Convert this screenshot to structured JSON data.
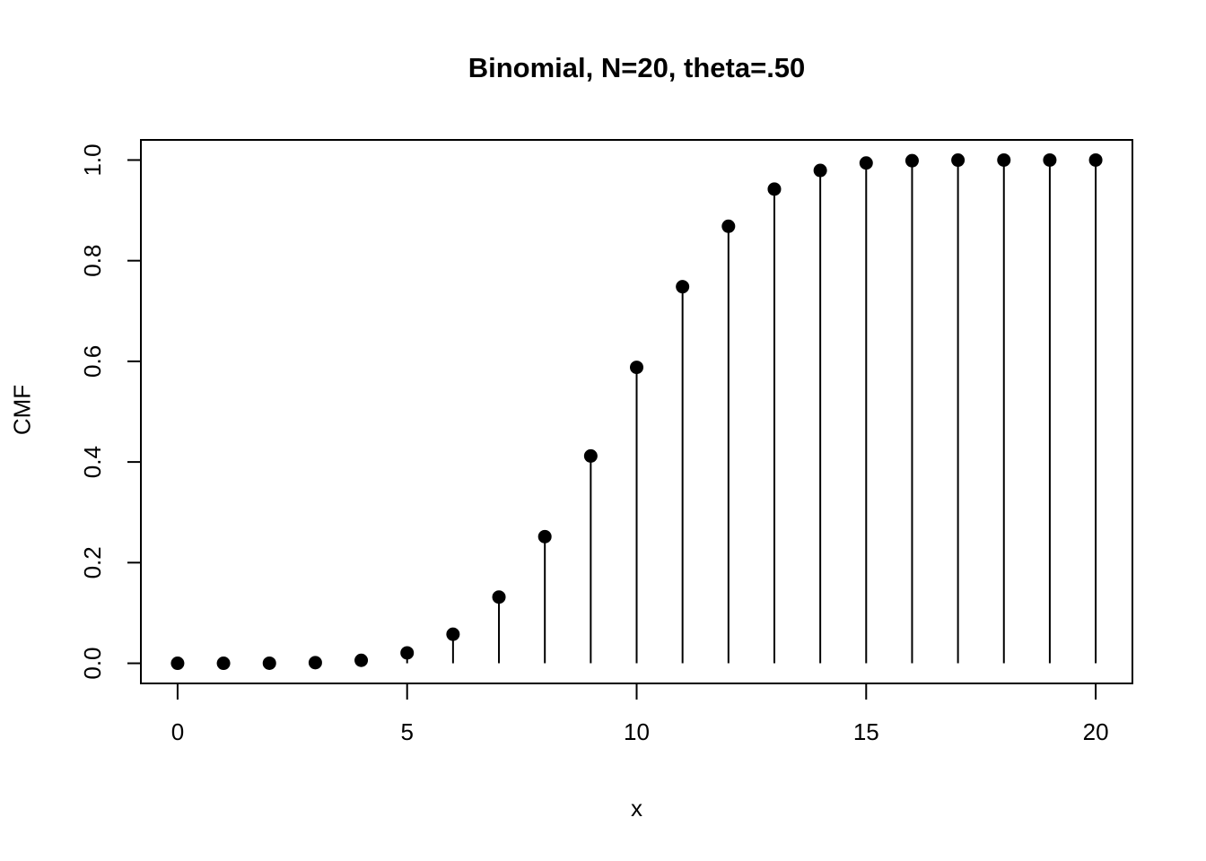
{
  "chart_data": {
    "type": "scatter",
    "style": "stem",
    "title": "Binomial, N=20, theta=.50",
    "xlabel": "x",
    "ylabel": "CMF",
    "x": [
      0,
      1,
      2,
      3,
      4,
      5,
      6,
      7,
      8,
      9,
      10,
      11,
      12,
      13,
      14,
      15,
      16,
      17,
      18,
      19,
      20
    ],
    "y": [
      0.0,
      0.0,
      0.0002,
      0.0013,
      0.0059,
      0.0207,
      0.0577,
      0.1316,
      0.2517,
      0.4119,
      0.5881,
      0.7483,
      0.8684,
      0.9423,
      0.9793,
      0.9941,
      0.9987,
      0.9998,
      1.0,
      1.0,
      1.0
    ],
    "xlim": [
      -0.8,
      20.8
    ],
    "ylim": [
      -0.04,
      1.04
    ],
    "xticks": {
      "values": [
        0,
        5,
        10,
        15,
        20
      ],
      "labels": [
        "0",
        "5",
        "10",
        "15",
        "20"
      ]
    },
    "yticks": {
      "values": [
        0.0,
        0.2,
        0.4,
        0.6,
        0.8,
        1.0
      ],
      "labels": [
        "0.0",
        "0.2",
        "0.4",
        "0.6",
        "0.8",
        "1.0"
      ]
    },
    "grid": false,
    "legend": null,
    "colors": {
      "background": "#ffffff",
      "box": "#000000",
      "stem": "#000000",
      "point": "#000000",
      "text": "#000000"
    }
  }
}
